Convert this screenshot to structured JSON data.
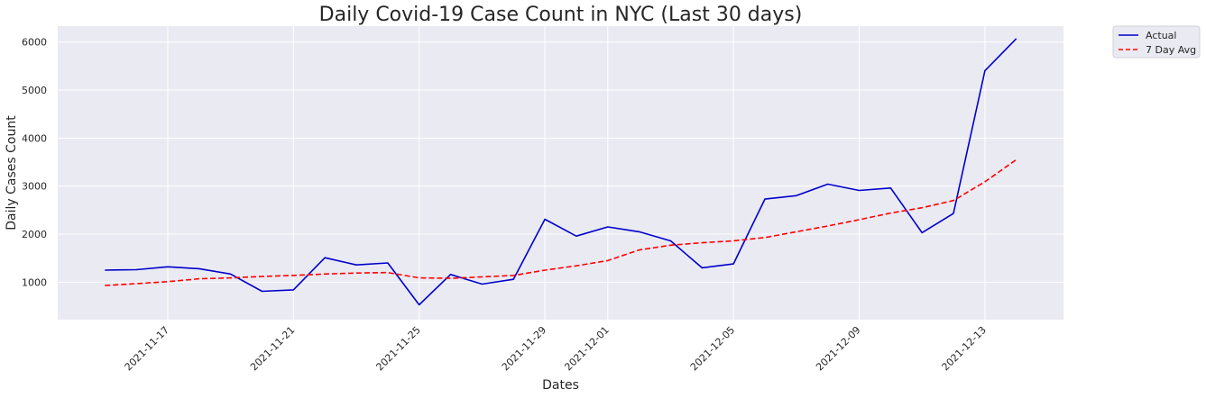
{
  "chart_data": {
    "type": "line",
    "title": "Daily Covid-19 Case Count in NYC (Last 30 days)",
    "xlabel": "Dates",
    "ylabel": "Daily Cases Count",
    "x": [
      "2021-11-15",
      "2021-11-16",
      "2021-11-17",
      "2021-11-18",
      "2021-11-19",
      "2021-11-20",
      "2021-11-21",
      "2021-11-22",
      "2021-11-23",
      "2021-11-24",
      "2021-11-25",
      "2021-11-26",
      "2021-11-27",
      "2021-11-28",
      "2021-11-29",
      "2021-11-30",
      "2021-12-01",
      "2021-12-02",
      "2021-12-03",
      "2021-12-04",
      "2021-12-05",
      "2021-12-06",
      "2021-12-07",
      "2021-12-08",
      "2021-12-09",
      "2021-12-10",
      "2021-12-11",
      "2021-12-12",
      "2021-12-13",
      "2021-12-14"
    ],
    "x_ticks": [
      "2021-11-17",
      "2021-11-21",
      "2021-11-25",
      "2021-11-29",
      "2021-12-01",
      "2021-12-05",
      "2021-12-09",
      "2021-12-13"
    ],
    "y_ticks": [
      1000,
      2000,
      3000,
      4000,
      5000,
      6000
    ],
    "ylim": [
      220,
      6330
    ],
    "xlim": [
      "2021-11-13T12:00",
      "2021-12-15T12:00"
    ],
    "grid": true,
    "legend_position": "outside-top-right",
    "series": [
      {
        "name": "Actual",
        "color": "#0000cc",
        "style": "solid",
        "values": [
          1250,
          1260,
          1320,
          1280,
          1170,
          810,
          840,
          1510,
          1360,
          1400,
          530,
          1160,
          960,
          1060,
          2310,
          1960,
          2150,
          2050,
          1860,
          1300,
          1380,
          2730,
          2800,
          3040,
          2910,
          2960,
          2030,
          2430,
          5400,
          6070
        ]
      },
      {
        "name": "7 Day Avg",
        "color": "#ff0000",
        "style": "dashed",
        "values": [
          930,
          970,
          1010,
          1070,
          1090,
          1120,
          1140,
          1170,
          1190,
          1200,
          1090,
          1080,
          1110,
          1140,
          1250,
          1340,
          1450,
          1670,
          1770,
          1820,
          1860,
          1930,
          2050,
          2170,
          2300,
          2440,
          2550,
          2700,
          3090,
          3550
        ]
      }
    ]
  }
}
